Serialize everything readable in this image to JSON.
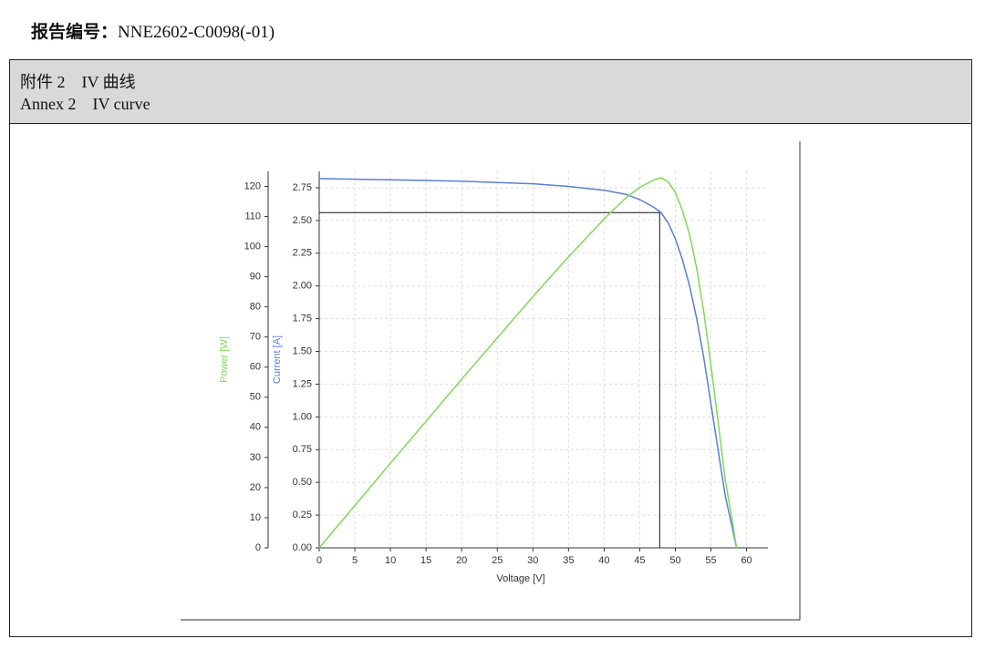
{
  "header": {
    "label": "报告编号：",
    "number": "NNE2602-C0098(-01)"
  },
  "section": {
    "title_cn": "附件 2　IV 曲线",
    "title_en": "Annex 2　IV curve"
  },
  "chart_data": {
    "type": "line",
    "xlabel": "Voltage [V]",
    "ylabel": "Current [A]",
    "y2label": "Power [W]",
    "x": [
      0,
      10,
      20,
      30,
      35,
      40,
      43,
      45,
      47,
      48,
      49,
      50,
      51,
      52,
      53,
      54,
      55,
      56,
      57,
      58,
      58.6
    ],
    "series": [
      {
        "name": "Current [A]",
        "color": "#5b7fd0",
        "values": [
          2.82,
          2.81,
          2.8,
          2.78,
          2.76,
          2.73,
          2.7,
          2.66,
          2.6,
          2.56,
          2.48,
          2.36,
          2.2,
          2.0,
          1.75,
          1.45,
          1.1,
          0.75,
          0.4,
          0.15,
          0
        ]
      },
      {
        "name": "Power [W]",
        "color": "#7ed957",
        "axis": "y2",
        "values": [
          0,
          28.1,
          56,
          83.4,
          96.6,
          109.2,
          116.1,
          119.7,
          122.2,
          122.9,
          121.5,
          118,
          112,
          104,
          92.8,
          78.3,
          60.5,
          42,
          22.8,
          8.7,
          0
        ]
      }
    ],
    "mpp": {
      "voltage": 47.8,
      "current": 2.56
    },
    "xlim": [
      0,
      63
    ],
    "xticks": [
      0,
      5,
      10,
      15,
      20,
      25,
      30,
      35,
      40,
      45,
      50,
      55,
      60
    ],
    "ylim": [
      0,
      2.875
    ],
    "yticks": [
      {
        "value": 0,
        "label": "0.00"
      },
      {
        "value": 0.25,
        "label": "0.25"
      },
      {
        "value": 0.5,
        "label": "0.50"
      },
      {
        "value": 0.75,
        "label": "0.75"
      },
      {
        "value": 1,
        "label": "1.00"
      },
      {
        "value": 1.25,
        "label": "1.25"
      },
      {
        "value": 1.5,
        "label": "1.50"
      },
      {
        "value": 1.75,
        "label": "1.75"
      },
      {
        "value": 2,
        "label": "2.00"
      },
      {
        "value": 2.25,
        "label": "2.25"
      },
      {
        "value": 2.5,
        "label": "2.50"
      },
      {
        "value": 2.75,
        "label": "2.75"
      }
    ],
    "y2lim": [
      0,
      125
    ],
    "y2ticks": [
      0,
      10,
      20,
      30,
      40,
      50,
      60,
      70,
      80,
      90,
      100,
      110,
      120
    ],
    "grid": true
  }
}
